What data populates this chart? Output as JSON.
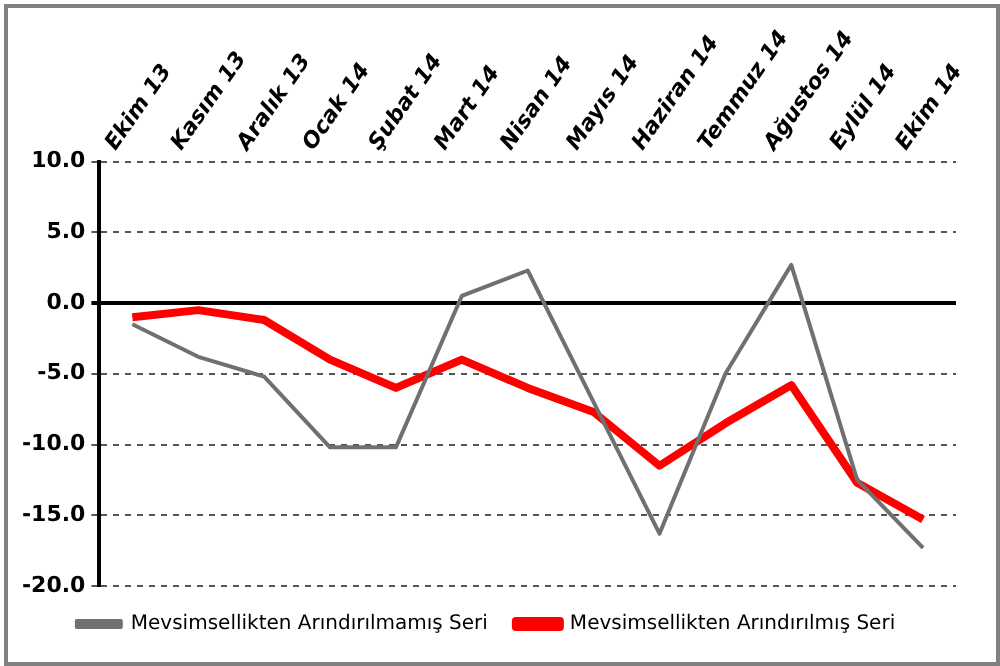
{
  "chart_data": {
    "type": "line",
    "categories": [
      "Ekim 13",
      "Kasım 13",
      "Aralık 13",
      "Ocak 14",
      "Şubat 14",
      "Mart 14",
      "Nisan 14",
      "Mayıs 14",
      "Haziran 14",
      "Temmuz 14",
      "Ağustos 14",
      "Eylül 14",
      "Ekim 14"
    ],
    "series": [
      {
        "name": "Mevsimsellikten Arındırılmamış Seri",
        "color": "#707070",
        "values": [
          -1.5,
          -3.8,
          -5.2,
          -10.2,
          -10.2,
          0.5,
          2.3,
          -7,
          -16.3,
          -5,
          2.7,
          -12.5,
          -17.3
        ]
      },
      {
        "name": "Mevsimsellikten Arındırılmış Seri",
        "color": "#ff0000",
        "values": [
          -1,
          -0.5,
          -1.2,
          -4,
          -6,
          -4,
          -6,
          -7.7,
          -11.5,
          -8.5,
          -5.8,
          -12.7,
          -15.3
        ]
      }
    ],
    "ylim": [
      -20,
      10
    ],
    "yticks": [
      {
        "value": -20,
        "label": "-20.0"
      },
      {
        "value": -15,
        "label": "-15.0"
      },
      {
        "value": -10,
        "label": "-10.0"
      },
      {
        "value": -5,
        "label": "-5.0"
      },
      {
        "value": 0,
        "label": "0.0"
      },
      {
        "value": 5,
        "label": "5.0"
      },
      {
        "value": 10,
        "label": "10.0"
      }
    ],
    "grid": "y",
    "legend": "bottom",
    "marker": "none",
    "line_style": "solid"
  }
}
